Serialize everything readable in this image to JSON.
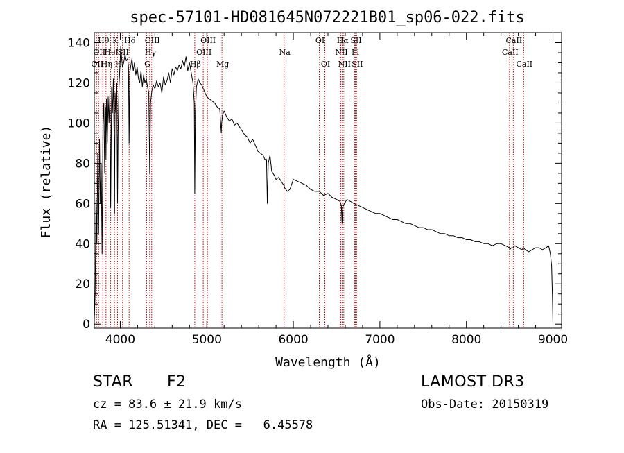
{
  "chart_data": {
    "type": "line",
    "title": "spec-57101-HD081645N072221B01_sp06-022.fits",
    "xlabel": "Wavelength (Å)",
    "ylabel": "Flux (relative)",
    "xlim": [
      3700,
      9100
    ],
    "ylim": [
      -2,
      145
    ],
    "x_ticks": [
      4000,
      5000,
      6000,
      7000,
      8000,
      9000
    ],
    "y_ticks": [
      0,
      20,
      40,
      60,
      80,
      100,
      120,
      140
    ],
    "grid": false,
    "series": [
      {
        "name": "flux",
        "color": "#000000",
        "x": [
          3700,
          3710,
          3720,
          3730,
          3740,
          3750,
          3760,
          3770,
          3780,
          3790,
          3800,
          3810,
          3820,
          3830,
          3835,
          3840,
          3850,
          3860,
          3870,
          3880,
          3889,
          3900,
          3910,
          3920,
          3930,
          3934,
          3940,
          3950,
          3960,
          3968,
          3975,
          3985,
          3995,
          4005,
          4015,
          4025,
          4040,
          4055,
          4070,
          4085,
          4095,
          4102,
          4110,
          4120,
          4135,
          4150,
          4165,
          4180,
          4195,
          4210,
          4225,
          4240,
          4255,
          4270,
          4285,
          4300,
          4315,
          4330,
          4340,
          4350,
          4365,
          4380,
          4400,
          4420,
          4440,
          4460,
          4480,
          4500,
          4520,
          4540,
          4560,
          4580,
          4600,
          4620,
          4640,
          4660,
          4680,
          4700,
          4720,
          4740,
          4760,
          4780,
          4800,
          4820,
          4840,
          4855,
          4861,
          4868,
          4880,
          4900,
          4920,
          4940,
          4960,
          4980,
          5000,
          5030,
          5060,
          5090,
          5120,
          5150,
          5167,
          5172,
          5183,
          5200,
          5230,
          5260,
          5290,
          5320,
          5350,
          5380,
          5410,
          5440,
          5470,
          5500,
          5530,
          5560,
          5590,
          5620,
          5650,
          5670,
          5690,
          5700,
          5710,
          5730,
          5750,
          5780,
          5800,
          5830,
          5860,
          5890,
          5893,
          5896,
          5930,
          5960,
          6000,
          6050,
          6100,
          6150,
          6200,
          6250,
          6300,
          6350,
          6400,
          6450,
          6500,
          6540,
          6555,
          6563,
          6570,
          6590,
          6620,
          6660,
          6700,
          6750,
          6800,
          6850,
          6900,
          6950,
          7000,
          7050,
          7100,
          7150,
          7200,
          7250,
          7300,
          7350,
          7400,
          7450,
          7500,
          7550,
          7600,
          7650,
          7700,
          7750,
          7800,
          7850,
          7900,
          7950,
          8000,
          8050,
          8100,
          8150,
          8200,
          8250,
          8300,
          8350,
          8400,
          8450,
          8498,
          8500,
          8520,
          8542,
          8560,
          8600,
          8640,
          8662,
          8680,
          8720,
          8760,
          8800,
          8840,
          8880,
          8920,
          8950,
          8970,
          8985,
          8995,
          9000
        ],
        "values": [
          2,
          15,
          65,
          40,
          85,
          45,
          92,
          60,
          80,
          35,
          100,
          110,
          75,
          108,
          82,
          112,
          90,
          113,
          100,
          115,
          58,
          118,
          105,
          122,
          90,
          55,
          115,
          105,
          120,
          60,
          95,
          118,
          127,
          138,
          133,
          128,
          130,
          134,
          131,
          132,
          128,
          90,
          125,
          128,
          132,
          126,
          130,
          124,
          128,
          122,
          120,
          126,
          118,
          124,
          120,
          122,
          118,
          115,
          75,
          110,
          116,
          119,
          117,
          121,
          118,
          120,
          115,
          123,
          119,
          121,
          125,
          120,
          127,
          124,
          128,
          126,
          129,
          127,
          131,
          128,
          133,
          126,
          130,
          125,
          120,
          110,
          65,
          105,
          118,
          122,
          120,
          119,
          117,
          115,
          113,
          112,
          111,
          110,
          108,
          107,
          95,
          100,
          104,
          106,
          103,
          101,
          102,
          99,
          100,
          98,
          96,
          94,
          93,
          90,
          92,
          89,
          86,
          85,
          84,
          82,
          82,
          60,
          80,
          84,
          76,
          74,
          72,
          73,
          71,
          69,
          70,
          68,
          66,
          67,
          72,
          71,
          70,
          69,
          67,
          66,
          66,
          64,
          65,
          63,
          62,
          61,
          59,
          50,
          58,
          60,
          62,
          61,
          60,
          59,
          58,
          57,
          56,
          55,
          55,
          54,
          53,
          52,
          52,
          51,
          50,
          50,
          49,
          48,
          48,
          47,
          47,
          46,
          45,
          45,
          44,
          44,
          43,
          43,
          42,
          42,
          41,
          41,
          40,
          40,
          39,
          40,
          40,
          39,
          38,
          37,
          38,
          38,
          39,
          38,
          37,
          38,
          37,
          36,
          37,
          38,
          38,
          37,
          38,
          39,
          35,
          29,
          12,
          0
        ]
      }
    ],
    "line_markers": [
      {
        "wavelength": 3726,
        "label": "OII",
        "row": 2
      },
      {
        "wavelength": 3750,
        "label": "OII",
        "row": 1
      },
      {
        "wavelength": 3798,
        "label": "Hθ",
        "row": 0
      },
      {
        "wavelength": 3835,
        "label": "Hη",
        "row": 2
      },
      {
        "wavelength": 3889,
        "label": "HeI",
        "row": 1
      },
      {
        "wavelength": 3934,
        "label": "K",
        "row": 0
      },
      {
        "wavelength": 3968,
        "label": "H",
        "row": 2
      },
      {
        "wavelength": 4026,
        "label": "SII",
        "row": 1
      },
      {
        "wavelength": 4102,
        "label": "Hδ",
        "row": 0
      },
      {
        "wavelength": 4305,
        "label": "G",
        "row": 2
      },
      {
        "wavelength": 4340,
        "label": "Hγ",
        "row": 1
      },
      {
        "wavelength": 4363,
        "label": "OIII",
        "row": 0
      },
      {
        "wavelength": 4861,
        "label": "Hβ",
        "row": 2
      },
      {
        "wavelength": 4959,
        "label": "OIII",
        "row": 1
      },
      {
        "wavelength": 5007,
        "label": "OIII",
        "row": 0
      },
      {
        "wavelength": 5175,
        "label": "Mg",
        "row": 2
      },
      {
        "wavelength": 5893,
        "label": "Na",
        "row": 1
      },
      {
        "wavelength": 6300,
        "label": "OI",
        "row": 0
      },
      {
        "wavelength": 6364,
        "label": "OI",
        "row": 2
      },
      {
        "wavelength": 6548,
        "label": "NII",
        "row": 1
      },
      {
        "wavelength": 6563,
        "label": "Hα",
        "row": 0
      },
      {
        "wavelength": 6583,
        "label": "NII",
        "row": 2
      },
      {
        "wavelength": 6708,
        "label": "Li",
        "row": 1
      },
      {
        "wavelength": 6716,
        "label": "SII",
        "row": 0
      },
      {
        "wavelength": 6731,
        "label": "SII",
        "row": 2
      },
      {
        "wavelength": 8498,
        "label": "CaII",
        "row": 1
      },
      {
        "wavelength": 8542,
        "label": "CaII",
        "row": 0
      },
      {
        "wavelength": 8662,
        "label": "CaII",
        "row": 2
      }
    ],
    "marker_color": "#cc0000"
  },
  "info": {
    "object_type": "STAR",
    "subclass": "F2",
    "survey": "LAMOST DR3",
    "cz_text": "cz = 83.6 ± 21.9 km/s",
    "obs_date_text": "Obs-Date: 20150319",
    "radec_text": "RA = 125.51341, DEC =   6.45578"
  }
}
